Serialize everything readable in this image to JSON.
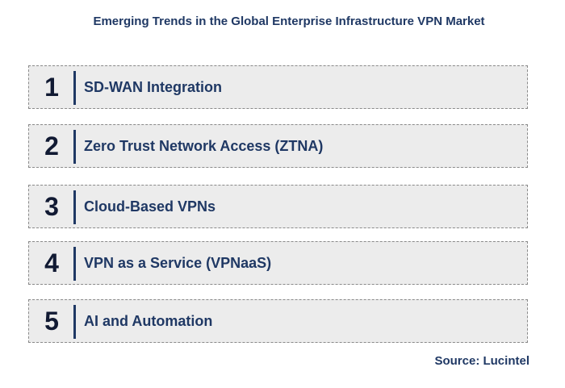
{
  "title": "Emerging Trends in the Global Enterprise Infrastructure VPN Market",
  "trends": [
    {
      "number": "1",
      "label": "SD-WAN Integration"
    },
    {
      "number": "2",
      "label": "Zero Trust Network Access (ZTNA)"
    },
    {
      "number": "3",
      "label": "Cloud-Based VPNs"
    },
    {
      "number": "4",
      "label": "VPN as a Service (VPNaaS)"
    },
    {
      "number": "5",
      "label": "AI and Automation"
    }
  ],
  "source": "Source: Lucintel",
  "colors": {
    "text_navy": "#1f3864",
    "box_fill": "#ececec",
    "box_border": "#8a8a8a"
  }
}
